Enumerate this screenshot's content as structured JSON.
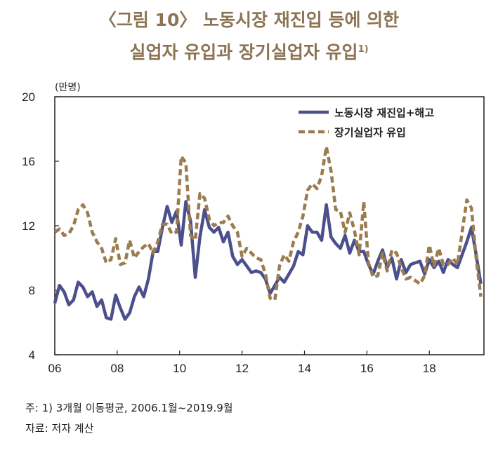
{
  "title": {
    "line1": "〈그림 10〉 노동시장 재진입 등에 의한",
    "line2": "실업자 유입과 장기실업자 유입",
    "line2_sup": "1)"
  },
  "notes": {
    "note": "주: 1) 3개월 이동평균, 2006.1월~2019.9월",
    "source": "자료: 저자 계산"
  },
  "chart_data": {
    "type": "line",
    "unit_label": "(만명)",
    "ylim": [
      4,
      20
    ],
    "yticks": [
      "4",
      "8",
      "12",
      "16",
      "20"
    ],
    "xlim": [
      2006,
      2019.75
    ],
    "xticks": [
      {
        "value": 2006,
        "label": "06"
      },
      {
        "value": 2008,
        "label": "08"
      },
      {
        "value": 2010,
        "label": "10"
      },
      {
        "value": 2012,
        "label": "12"
      },
      {
        "value": 2014,
        "label": "14"
      },
      {
        "value": 2016,
        "label": "16"
      },
      {
        "value": 2018,
        "label": "18"
      }
    ],
    "legend_position": "top-right",
    "grid": false,
    "series": [
      {
        "name": "노동시장 재진입+해고",
        "color": "#4b4f8c",
        "style": "solid",
        "points": [
          [
            2006.0,
            7.2
          ],
          [
            2006.15,
            8.3
          ],
          [
            2006.3,
            7.9
          ],
          [
            2006.45,
            7.1
          ],
          [
            2006.6,
            7.4
          ],
          [
            2006.75,
            8.5
          ],
          [
            2006.9,
            8.2
          ],
          [
            2007.05,
            7.6
          ],
          [
            2007.2,
            7.9
          ],
          [
            2007.35,
            7.0
          ],
          [
            2007.5,
            7.4
          ],
          [
            2007.65,
            6.3
          ],
          [
            2007.8,
            6.2
          ],
          [
            2007.95,
            7.7
          ],
          [
            2008.1,
            6.9
          ],
          [
            2008.25,
            6.2
          ],
          [
            2008.4,
            6.6
          ],
          [
            2008.55,
            7.6
          ],
          [
            2008.7,
            8.2
          ],
          [
            2008.85,
            7.6
          ],
          [
            2009.0,
            8.7
          ],
          [
            2009.15,
            10.4
          ],
          [
            2009.3,
            10.4
          ],
          [
            2009.45,
            11.9
          ],
          [
            2009.6,
            13.2
          ],
          [
            2009.75,
            12.2
          ],
          [
            2009.9,
            12.9
          ],
          [
            2010.05,
            10.8
          ],
          [
            2010.2,
            13.5
          ],
          [
            2010.35,
            12.3
          ],
          [
            2010.5,
            8.8
          ],
          [
            2010.65,
            11.3
          ],
          [
            2010.8,
            13.0
          ],
          [
            2010.95,
            11.9
          ],
          [
            2011.1,
            11.6
          ],
          [
            2011.25,
            11.9
          ],
          [
            2011.4,
            11.0
          ],
          [
            2011.55,
            11.6
          ],
          [
            2011.7,
            10.1
          ],
          [
            2011.85,
            9.6
          ],
          [
            2012.0,
            9.9
          ],
          [
            2012.15,
            9.5
          ],
          [
            2012.3,
            9.1
          ],
          [
            2012.45,
            9.2
          ],
          [
            2012.6,
            9.1
          ],
          [
            2012.75,
            8.7
          ],
          [
            2012.9,
            7.8
          ],
          [
            2013.05,
            8.3
          ],
          [
            2013.2,
            8.8
          ],
          [
            2013.35,
            8.5
          ],
          [
            2013.5,
            9.0
          ],
          [
            2013.65,
            9.5
          ],
          [
            2013.8,
            10.4
          ],
          [
            2013.95,
            10.2
          ],
          [
            2014.1,
            12.0
          ],
          [
            2014.25,
            11.6
          ],
          [
            2014.4,
            11.6
          ],
          [
            2014.55,
            11.1
          ],
          [
            2014.7,
            13.3
          ],
          [
            2014.85,
            11.3
          ],
          [
            2015.0,
            10.9
          ],
          [
            2015.15,
            10.6
          ],
          [
            2015.3,
            11.4
          ],
          [
            2015.45,
            10.3
          ],
          [
            2015.6,
            11.1
          ],
          [
            2015.75,
            10.4
          ],
          [
            2015.9,
            10.4
          ],
          [
            2016.05,
            9.6
          ],
          [
            2016.2,
            9.0
          ],
          [
            2016.35,
            9.8
          ],
          [
            2016.5,
            10.5
          ],
          [
            2016.65,
            9.4
          ],
          [
            2016.8,
            10.0
          ],
          [
            2016.95,
            8.7
          ],
          [
            2017.1,
            9.9
          ],
          [
            2017.25,
            9.1
          ],
          [
            2017.4,
            9.6
          ],
          [
            2017.55,
            9.7
          ],
          [
            2017.7,
            9.8
          ],
          [
            2017.85,
            9.0
          ],
          [
            2018.0,
            9.9
          ],
          [
            2018.15,
            9.4
          ],
          [
            2018.3,
            9.8
          ],
          [
            2018.45,
            9.1
          ],
          [
            2018.6,
            9.9
          ],
          [
            2018.75,
            9.6
          ],
          [
            2018.9,
            9.4
          ],
          [
            2019.05,
            10.2
          ],
          [
            2019.2,
            11.0
          ],
          [
            2019.35,
            11.9
          ],
          [
            2019.5,
            10.2
          ],
          [
            2019.65,
            8.4
          ]
        ]
      },
      {
        "name": "장기실업자 유입",
        "color": "#9a7c4f",
        "style": "dashed",
        "points": [
          [
            2006.0,
            11.6
          ],
          [
            2006.15,
            11.8
          ],
          [
            2006.3,
            11.4
          ],
          [
            2006.45,
            11.5
          ],
          [
            2006.6,
            12.0
          ],
          [
            2006.75,
            13.0
          ],
          [
            2006.9,
            13.3
          ],
          [
            2007.05,
            12.8
          ],
          [
            2007.2,
            11.6
          ],
          [
            2007.35,
            11.0
          ],
          [
            2007.5,
            10.6
          ],
          [
            2007.65,
            9.7
          ],
          [
            2007.8,
            9.9
          ],
          [
            2007.95,
            11.2
          ],
          [
            2008.1,
            9.6
          ],
          [
            2008.25,
            9.7
          ],
          [
            2008.4,
            11.1
          ],
          [
            2008.55,
            10.0
          ],
          [
            2008.7,
            10.4
          ],
          [
            2008.85,
            10.7
          ],
          [
            2009.0,
            10.9
          ],
          [
            2009.15,
            10.3
          ],
          [
            2009.3,
            11.0
          ],
          [
            2009.45,
            12.1
          ],
          [
            2009.6,
            12.1
          ],
          [
            2009.75,
            11.5
          ],
          [
            2009.9,
            11.6
          ],
          [
            2010.05,
            16.3
          ],
          [
            2010.2,
            15.9
          ],
          [
            2010.35,
            11.4
          ],
          [
            2010.5,
            11.1
          ],
          [
            2010.65,
            14.0
          ],
          [
            2010.8,
            13.7
          ],
          [
            2010.95,
            12.4
          ],
          [
            2011.1,
            12.0
          ],
          [
            2011.25,
            12.2
          ],
          [
            2011.4,
            12.2
          ],
          [
            2011.55,
            12.6
          ],
          [
            2011.7,
            12.0
          ],
          [
            2011.85,
            11.6
          ],
          [
            2012.0,
            10.1
          ],
          [
            2012.15,
            10.6
          ],
          [
            2012.3,
            10.3
          ],
          [
            2012.45,
            10.0
          ],
          [
            2012.6,
            9.9
          ],
          [
            2012.75,
            9.0
          ],
          [
            2012.9,
            7.5
          ],
          [
            2013.05,
            7.4
          ],
          [
            2013.2,
            9.5
          ],
          [
            2013.35,
            10.2
          ],
          [
            2013.5,
            9.8
          ],
          [
            2013.65,
            11.0
          ],
          [
            2013.8,
            11.6
          ],
          [
            2013.95,
            12.6
          ],
          [
            2014.1,
            14.2
          ],
          [
            2014.25,
            14.6
          ],
          [
            2014.4,
            14.3
          ],
          [
            2014.55,
            15.1
          ],
          [
            2014.7,
            16.9
          ],
          [
            2014.85,
            15.4
          ],
          [
            2015.0,
            13.0
          ],
          [
            2015.15,
            12.9
          ],
          [
            2015.3,
            11.6
          ],
          [
            2015.45,
            12.8
          ],
          [
            2015.6,
            11.7
          ],
          [
            2015.75,
            10.2
          ],
          [
            2015.9,
            13.5
          ],
          [
            2016.05,
            9.7
          ],
          [
            2016.2,
            8.8
          ],
          [
            2016.35,
            8.9
          ],
          [
            2016.5,
            10.3
          ],
          [
            2016.65,
            9.2
          ],
          [
            2016.8,
            10.5
          ],
          [
            2016.95,
            10.3
          ],
          [
            2017.1,
            9.4
          ],
          [
            2017.25,
            8.7
          ],
          [
            2017.4,
            8.8
          ],
          [
            2017.55,
            8.6
          ],
          [
            2017.7,
            8.4
          ],
          [
            2017.85,
            8.9
          ],
          [
            2018.0,
            10.8
          ],
          [
            2018.15,
            9.5
          ],
          [
            2018.3,
            10.6
          ],
          [
            2018.45,
            9.6
          ],
          [
            2018.6,
            9.6
          ],
          [
            2018.75,
            10.0
          ],
          [
            2018.9,
            9.6
          ],
          [
            2019.05,
            11.6
          ],
          [
            2019.2,
            13.6
          ],
          [
            2019.35,
            13.1
          ],
          [
            2019.5,
            10.0
          ],
          [
            2019.65,
            7.6
          ]
        ]
      }
    ]
  }
}
